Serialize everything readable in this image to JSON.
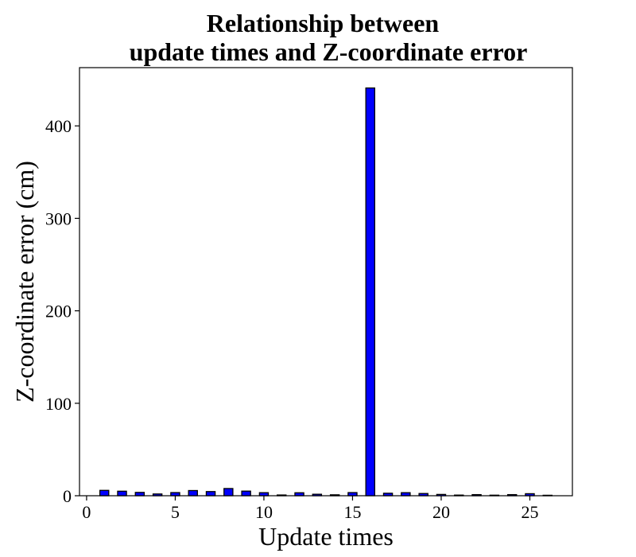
{
  "chart_data": {
    "type": "bar",
    "title_lines": [
      "Relationship between",
      "update times and Z-coordinate error"
    ],
    "xlabel": "Update times",
    "ylabel": "Z-coordinate error (cm)",
    "x": [
      1,
      2,
      3,
      4,
      5,
      6,
      7,
      8,
      9,
      10,
      11,
      12,
      13,
      14,
      15,
      16,
      17,
      18,
      19,
      20,
      21,
      22,
      23,
      24,
      25,
      26
    ],
    "values": [
      5.8,
      4.9,
      3.6,
      1.9,
      3.4,
      5.6,
      4.5,
      7.8,
      5.0,
      3.3,
      0.8,
      3.2,
      1.6,
      1.0,
      3.4,
      441.0,
      2.7,
      3.3,
      2.4,
      1.4,
      0.7,
      1.2,
      0.6,
      1.2,
      2.2,
      0.5
    ],
    "xlim": [
      -0.4,
      27.4
    ],
    "ylim": [
      0,
      463
    ],
    "xticks": [
      0,
      5,
      10,
      15,
      20,
      25
    ],
    "yticks": [
      0,
      100,
      200,
      300,
      400
    ],
    "bar_color": "#0000ff",
    "edge_color": "#000000",
    "grid": false,
    "legend": "none"
  }
}
